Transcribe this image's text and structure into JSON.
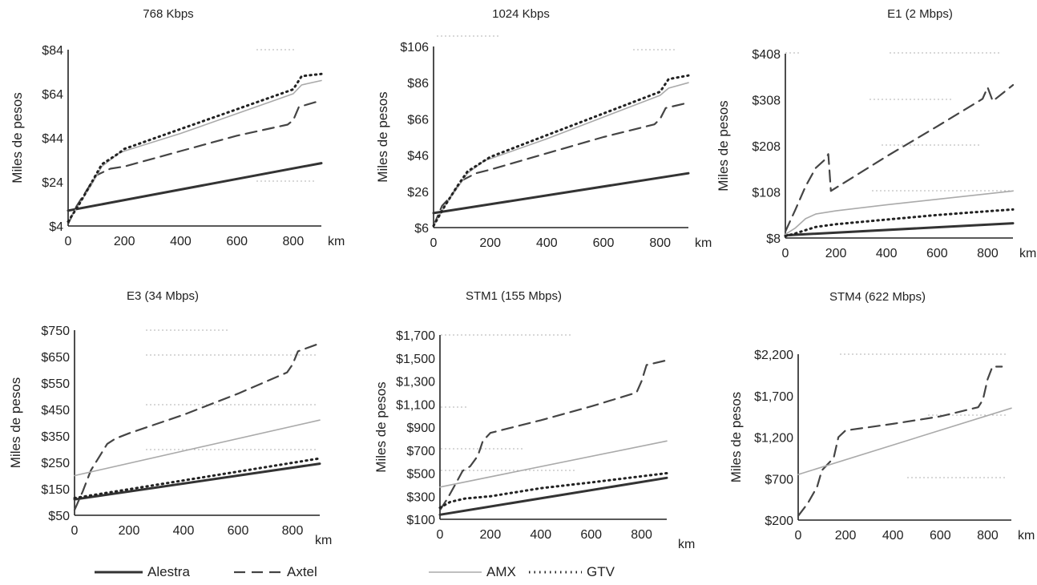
{
  "chart_data": [
    {
      "type": "line",
      "title": "768 Kbps",
      "xlabel": "km",
      "ylabel": "Miles de pesos",
      "xlim": [
        0,
        900
      ],
      "ylim": [
        4,
        84
      ],
      "xticks": [
        "0",
        "200",
        "400",
        "600",
        "800"
      ],
      "yticks": [
        "$4",
        "$24",
        "$44",
        "$64",
        "$84"
      ],
      "series": [
        {
          "name": "Alestra",
          "x": [
            0,
            900
          ],
          "y": [
            11,
            32.5
          ]
        },
        {
          "name": "Axtel",
          "x": [
            0,
            30,
            60,
            100,
            150,
            200,
            400,
            600,
            780,
            800,
            820,
            900
          ],
          "y": [
            5,
            13,
            19,
            27,
            30,
            31,
            38,
            45,
            50,
            52,
            58,
            61
          ]
        },
        {
          "name": "AMX",
          "x": [
            0,
            40,
            80,
            120,
            180,
            200,
            400,
            600,
            800,
            830,
            900
          ],
          "y": [
            6,
            14,
            22,
            31,
            37,
            38,
            46,
            55,
            64,
            68,
            70
          ]
        },
        {
          "name": "GTV",
          "x": [
            0,
            40,
            80,
            120,
            180,
            200,
            400,
            600,
            800,
            830,
            900
          ],
          "y": [
            6,
            14,
            23,
            32,
            37,
            39,
            48,
            57,
            66,
            72,
            73
          ]
        }
      ]
    },
    {
      "type": "line",
      "title": "1024 Kbps",
      "xlabel": "km",
      "ylabel": "Miles de pesos",
      "xlim": [
        0,
        900
      ],
      "ylim": [
        6,
        106
      ],
      "xticks": [
        "0",
        "200",
        "400",
        "600",
        "800"
      ],
      "yticks": [
        "$6",
        "$26",
        "$46",
        "$66",
        "$86",
        "$106"
      ],
      "series": [
        {
          "name": "Alestra",
          "x": [
            0,
            900
          ],
          "y": [
            14,
            36
          ]
        },
        {
          "name": "Axtel",
          "x": [
            0,
            30,
            60,
            100,
            150,
            200,
            400,
            600,
            780,
            800,
            820,
            900
          ],
          "y": [
            7,
            18,
            23,
            32,
            36,
            38,
            47,
            56,
            63,
            66,
            72,
            75
          ]
        },
        {
          "name": "AMX",
          "x": [
            0,
            40,
            80,
            120,
            180,
            200,
            400,
            600,
            800,
            830,
            900
          ],
          "y": [
            7,
            18,
            27,
            36,
            43,
            44,
            55,
            67,
            79,
            83,
            86
          ]
        },
        {
          "name": "GTV",
          "x": [
            0,
            40,
            80,
            120,
            180,
            200,
            400,
            600,
            800,
            830,
            900
          ],
          "y": [
            7,
            18,
            28,
            37,
            43,
            45,
            57,
            69,
            81,
            88,
            90
          ]
        }
      ]
    },
    {
      "type": "line",
      "title": "E1 (2 Mbps)",
      "xlabel": "km",
      "ylabel": "Miles de pesos",
      "xlim": [
        0,
        900
      ],
      "ylim": [
        8,
        408
      ],
      "xticks": [
        "0",
        "200",
        "400",
        "600",
        "800"
      ],
      "yticks": [
        "$8",
        "$108",
        "$208",
        "$308",
        "$408"
      ],
      "series": [
        {
          "name": "Alestra",
          "x": [
            0,
            900
          ],
          "y": [
            14,
            40
          ]
        },
        {
          "name": "Axtel",
          "x": [
            0,
            40,
            80,
            120,
            160,
            170,
            180,
            400,
            600,
            780,
            800,
            820,
            900
          ],
          "y": [
            22,
            70,
            120,
            160,
            180,
            190,
            110,
            185,
            250,
            310,
            335,
            305,
            340
          ]
        },
        {
          "name": "AMX",
          "x": [
            0,
            40,
            80,
            120,
            200,
            400,
            600,
            800,
            900
          ],
          "y": [
            16,
            30,
            50,
            60,
            67,
            80,
            92,
            104,
            110
          ]
        },
        {
          "name": "GTV",
          "x": [
            0,
            40,
            80,
            120,
            200,
            400,
            600,
            800,
            900
          ],
          "y": [
            12,
            18,
            25,
            32,
            38,
            48,
            58,
            66,
            70
          ]
        }
      ]
    },
    {
      "type": "line",
      "title": "E3 (34 Mbps)",
      "xlabel": "km",
      "ylabel": "Miles de pesos",
      "xlim": [
        0,
        900
      ],
      "ylim": [
        50,
        750
      ],
      "xticks": [
        "0",
        "200",
        "400",
        "600",
        "800"
      ],
      "yticks": [
        "$50",
        "$150",
        "$250",
        "$350",
        "$450",
        "$550",
        "$650",
        "$750"
      ],
      "series": [
        {
          "name": "Alestra",
          "x": [
            0,
            900
          ],
          "y": [
            110,
            245
          ]
        },
        {
          "name": "Axtel",
          "x": [
            0,
            30,
            60,
            90,
            120,
            150,
            200,
            400,
            600,
            780,
            800,
            820,
            900
          ],
          "y": [
            70,
            140,
            220,
            270,
            320,
            340,
            360,
            430,
            510,
            590,
            620,
            670,
            700
          ]
        },
        {
          "name": "AMX",
          "x": [
            0,
            900
          ],
          "y": [
            200,
            410
          ]
        },
        {
          "name": "GTV",
          "x": [
            0,
            900
          ],
          "y": [
            115,
            265
          ]
        }
      ]
    },
    {
      "type": "line",
      "title": "STM1 (155 Mbps)",
      "xlabel": "km",
      "ylabel": "Miles de pesos",
      "xlim": [
        0,
        900
      ],
      "ylim": [
        100,
        1700
      ],
      "xticks": [
        "0",
        "200",
        "400",
        "600",
        "800"
      ],
      "yticks": [
        "$100",
        "$300",
        "$500",
        "$700",
        "$900",
        "$1,100",
        "$1,300",
        "$1,500",
        "$1,700"
      ],
      "series": [
        {
          "name": "Alestra",
          "x": [
            0,
            900
          ],
          "y": [
            140,
            460
          ]
        },
        {
          "name": "Axtel",
          "x": [
            0,
            30,
            60,
            90,
            120,
            150,
            170,
            200,
            400,
            600,
            780,
            800,
            820,
            900
          ],
          "y": [
            180,
            280,
            400,
            520,
            560,
            650,
            780,
            850,
            960,
            1080,
            1200,
            1300,
            1440,
            1480
          ]
        },
        {
          "name": "AMX",
          "x": [
            0,
            900
          ],
          "y": [
            380,
            780
          ]
        },
        {
          "name": "GTV",
          "x": [
            0,
            40,
            100,
            200,
            400,
            600,
            900
          ],
          "y": [
            200,
            250,
            280,
            300,
            370,
            420,
            500
          ]
        }
      ]
    },
    {
      "type": "line",
      "title": "STM4 (622 Mbps)",
      "xlabel": "km",
      "ylabel": "Miles de pesos",
      "xlim": [
        0,
        900
      ],
      "ylim": [
        200,
        2200
      ],
      "xticks": [
        "0",
        "200",
        "400",
        "600",
        "800"
      ],
      "yticks": [
        "$200",
        "$700",
        "$1,200",
        "$1,700",
        "$2,200"
      ],
      "series": [
        {
          "name": "Axtel",
          "x": [
            0,
            40,
            80,
            100,
            150,
            170,
            200,
            400,
            600,
            760,
            780,
            800,
            820,
            860
          ],
          "y": [
            250,
            400,
            600,
            800,
            950,
            1200,
            1280,
            1360,
            1450,
            1560,
            1650,
            1900,
            2050,
            2050
          ]
        },
        {
          "name": "AMX",
          "x": [
            0,
            900
          ],
          "y": [
            750,
            1550
          ]
        }
      ]
    }
  ],
  "legend": {
    "items": [
      {
        "label": "Alestra"
      },
      {
        "label": "Axtel"
      },
      {
        "label": "AMX"
      },
      {
        "label": "GTV"
      }
    ]
  },
  "series_styles": {
    "Alestra": {
      "color": "#333333",
      "dash": "",
      "width": 3
    },
    "Axtel": {
      "color": "#444444",
      "dash": "14,8",
      "width": 2.2
    },
    "AMX": {
      "color": "#aaaaaa",
      "dash": "",
      "width": 1.6
    },
    "GTV": {
      "color": "#222222",
      "dash": "1.5,5",
      "width": 3
    }
  }
}
